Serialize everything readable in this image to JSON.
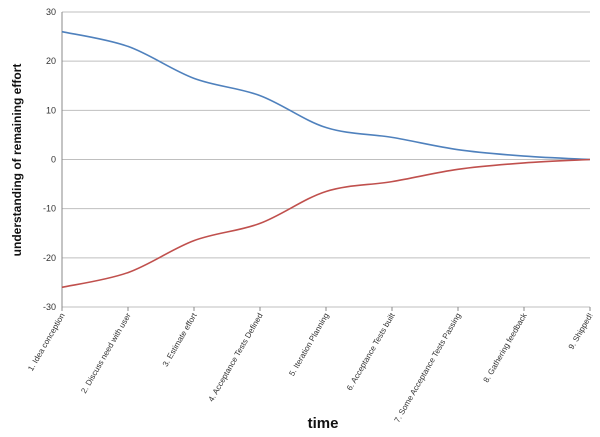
{
  "chart_data": {
    "type": "line",
    "title": "",
    "xlabel": "time",
    "ylabel": "understanding of remaining effort",
    "ylim": [
      -30,
      30
    ],
    "yticks": [
      "30",
      "20",
      "10",
      "0",
      "-10",
      "-20",
      "-30"
    ],
    "ytick_values": [
      30,
      20,
      10,
      0,
      -10,
      -20,
      -30
    ],
    "grid": true,
    "legend": "none",
    "categories": [
      "1. Idea conception",
      "2. Discuss need with user",
      "3. Estimate effort",
      "4. Acceptance Tests Defined",
      "5. Iteration Planning",
      "6. Acceptance Tests built",
      "7. Some Acceptance Tests Passing",
      "8. Gathering feedback",
      "9. Shipped!"
    ],
    "series": [
      {
        "values": [
          26,
          23,
          16.5,
          13,
          6.5,
          4.5,
          2,
          0.7,
          0
        ],
        "color": "#4f81bd"
      },
      {
        "values": [
          -26,
          -23,
          -16.5,
          -13,
          -6.5,
          -4.5,
          -2,
          -0.7,
          0
        ],
        "color": "#c0504d"
      }
    ],
    "colors": {
      "grid": "#bfbfbf",
      "axis": "#888888"
    }
  }
}
